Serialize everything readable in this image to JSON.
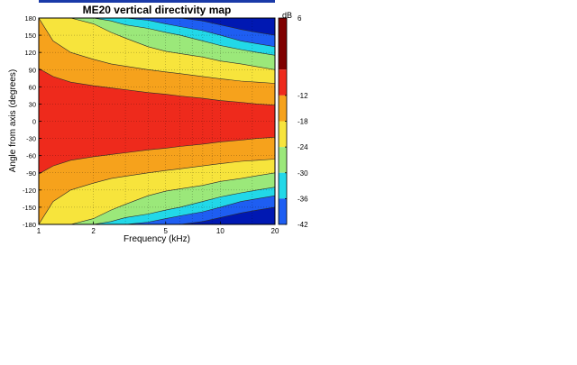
{
  "chart_data": {
    "type": "heatmap",
    "title": "ME20 vertical directivity map",
    "xlabel": "Frequency (kHz)",
    "ylabel": "Angle from axis (degrees)",
    "x_scale": "log",
    "xlim": [
      1,
      20
    ],
    "ylim": [
      -180,
      180
    ],
    "x_ticks": [
      1,
      2,
      5,
      10,
      20
    ],
    "y_ticks": [
      180,
      150,
      120,
      90,
      60,
      30,
      0,
      -30,
      -60,
      -90,
      -120,
      -150,
      -180
    ],
    "grid": true,
    "colorbar": {
      "label": "dB",
      "range": [
        -42,
        6
      ],
      "ticks": [
        6,
        -12,
        -18,
        -24,
        -30,
        -36,
        -42
      ]
    },
    "levels_db": [
      0,
      -6,
      -12,
      -18,
      -24,
      -30,
      -36
    ],
    "level_colors": [
      "#7f0000",
      "#ee2a1c",
      "#f6a21c",
      "#f7e43c",
      "#9be87a",
      "#22d8e8",
      "#1e5ef2",
      "#0018b2"
    ],
    "contours": [
      {
        "level_db": -6,
        "x_khz": [
          1,
          1.2,
          1.5,
          2,
          2.5,
          3,
          4,
          5,
          6,
          8,
          10,
          13,
          16,
          20
        ],
        "upper_edge_deg": [
          92,
          78,
          68,
          62,
          58,
          55,
          50,
          47,
          44,
          40,
          36,
          33,
          30,
          28
        ],
        "lower_edge_deg": [
          -92,
          -78,
          -68,
          -62,
          -58,
          -55,
          -50,
          -47,
          -44,
          -40,
          -36,
          -33,
          -30,
          -28
        ]
      },
      {
        "level_db": -12,
        "x_khz": [
          1,
          1.2,
          1.5,
          2,
          2.5,
          3,
          4,
          5,
          6,
          8,
          10,
          13,
          16,
          20
        ],
        "upper_edge_deg": [
          180,
          140,
          120,
          108,
          100,
          96,
          90,
          86,
          83,
          78,
          74,
          70,
          68,
          66
        ],
        "lower_edge_deg": [
          -180,
          -140,
          -120,
          -108,
          -100,
          -96,
          -90,
          -86,
          -83,
          -78,
          -74,
          -70,
          -68,
          -66
        ]
      },
      {
        "level_db": -18,
        "x_khz": [
          1,
          1.2,
          1.5,
          2,
          2.5,
          3,
          4,
          5,
          6,
          8,
          10,
          13,
          16,
          20
        ],
        "upper_edge_deg": [
          180,
          180,
          180,
          170,
          155,
          145,
          130,
          122,
          118,
          112,
          105,
          100,
          95,
          90
        ],
        "lower_edge_deg": [
          -180,
          -180,
          -180,
          -170,
          -155,
          -145,
          -130,
          -122,
          -118,
          -112,
          -105,
          -100,
          -95,
          -90
        ]
      },
      {
        "level_db": -24,
        "x_khz": [
          1,
          1.2,
          1.5,
          2,
          2.5,
          3,
          4,
          5,
          6,
          8,
          10,
          13,
          16,
          20
        ],
        "upper_edge_deg": [
          180,
          180,
          180,
          180,
          175,
          168,
          162,
          155,
          150,
          140,
          132,
          125,
          120,
          115
        ],
        "lower_edge_deg": [
          -180,
          -180,
          -180,
          -180,
          -175,
          -168,
          -162,
          -155,
          -150,
          -140,
          -132,
          -125,
          -120,
          -115
        ]
      },
      {
        "level_db": -30,
        "x_khz": [
          1,
          1.2,
          1.5,
          2,
          2.5,
          3,
          4,
          5,
          6,
          8,
          10,
          13,
          16,
          20
        ],
        "upper_edge_deg": [
          180,
          180,
          180,
          180,
          180,
          180,
          176,
          170,
          165,
          158,
          150,
          140,
          135,
          130
        ],
        "lower_edge_deg": [
          -180,
          -180,
          -180,
          -180,
          -180,
          -180,
          -176,
          -170,
          -165,
          -158,
          -150,
          -140,
          -135,
          -130
        ]
      },
      {
        "level_db": -36,
        "x_khz": [
          1,
          1.2,
          1.5,
          2,
          2.5,
          3,
          4,
          5,
          6,
          8,
          10,
          13,
          16,
          20
        ],
        "upper_edge_deg": [
          180,
          180,
          180,
          180,
          180,
          180,
          180,
          180,
          180,
          175,
          168,
          160,
          155,
          150
        ],
        "lower_edge_deg": [
          -180,
          -180,
          -180,
          -180,
          -180,
          -180,
          -180,
          -180,
          -180,
          -175,
          -168,
          -160,
          -155,
          -150
        ]
      }
    ]
  }
}
